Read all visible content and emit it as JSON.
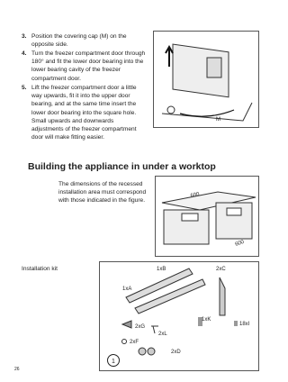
{
  "steps": [
    {
      "number": "3.",
      "text": "Position the covering cap (M) on the opposite side."
    },
    {
      "number": "4.",
      "text": "Turn the freezer compartment door through 180° and fit the lower door bearing into the lower bearing cavity of the freezer compartment door."
    },
    {
      "number": "5.",
      "text": "Lift the freezer compartment door a little way upwards, fit it into the upper door bearing, and at the same time insert the lower door bearing into the square hole. Small upwards and downwards adjustments of the freezer compartment door will make fitting easier."
    }
  ],
  "figure1": {
    "label": "M"
  },
  "heading": "Building the appliance in under a worktop",
  "paragraph": "The dimensions of the recessed installation area must correspond with those indicated in the figure.",
  "figure2": {
    "width": "600",
    "depth": "600"
  },
  "kit_label": "Installation kit",
  "kit_parts": [
    "1xB",
    "2xC",
    "1xA",
    "1xK",
    "18xI",
    "2xG",
    "2xL",
    "2xF",
    "2xD"
  ],
  "marker": "1",
  "page_number": "26"
}
